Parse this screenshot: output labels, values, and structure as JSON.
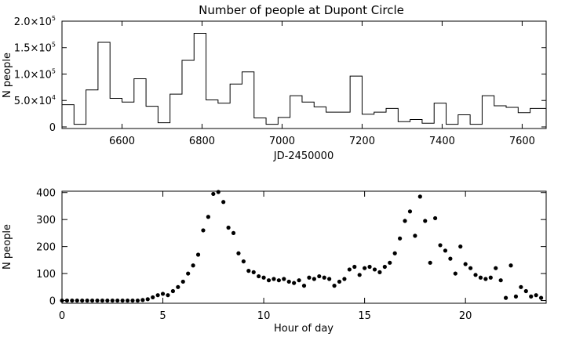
{
  "chart_data": [
    {
      "type": "histogram",
      "title": "Number of people at Dupont Circle",
      "xlabel": "JD-2450000",
      "ylabel": "N people",
      "xlim": [
        6450,
        7660
      ],
      "ylim": [
        -3000,
        200000
      ],
      "x_ticks": [
        6600,
        6800,
        7000,
        7200,
        7400,
        7600
      ],
      "y_ticks": [
        {
          "value": 0,
          "mantissa": "0",
          "power": ""
        },
        {
          "value": 50000,
          "mantissa": "5.0×10",
          "power": "4"
        },
        {
          "value": 100000,
          "mantissa": "1.0×10",
          "power": "5"
        },
        {
          "value": 150000,
          "mantissa": "1.5×10",
          "power": "5"
        },
        {
          "value": 200000,
          "mantissa": "2.0×10",
          "power": "5"
        }
      ],
      "bin_edges": [
        6450,
        6480,
        6510,
        6540,
        6570,
        6600,
        6630,
        6660,
        6690,
        6720,
        6750,
        6780,
        6810,
        6840,
        6870,
        6900,
        6930,
        6960,
        6990,
        7020,
        7050,
        7080,
        7110,
        7140,
        7170,
        7200,
        7230,
        7260,
        7290,
        7320,
        7350,
        7380,
        7410,
        7440,
        7470,
        7500,
        7530,
        7560,
        7590,
        7620,
        7660
      ],
      "values": [
        42000,
        5000,
        70000,
        160000,
        54000,
        47000,
        91000,
        39000,
        8000,
        62000,
        126000,
        177000,
        51000,
        45000,
        81000,
        104000,
        17000,
        5000,
        18000,
        59000,
        47000,
        38000,
        28000,
        28000,
        96000,
        24000,
        28000,
        35000,
        10000,
        14000,
        7000,
        45000,
        5000,
        23000,
        5000,
        59000,
        40000,
        37000,
        27000,
        35000
      ]
    },
    {
      "type": "scatter",
      "xlabel": "Hour of day",
      "ylabel": "N people",
      "xlim": [
        0,
        24
      ],
      "ylim": [
        -10,
        405
      ],
      "x_ticks": [
        0,
        5,
        10,
        15,
        20
      ],
      "y_ticks": [
        0,
        100,
        200,
        300,
        400
      ],
      "x": [
        0,
        0.25,
        0.5,
        0.75,
        1,
        1.25,
        1.5,
        1.75,
        2,
        2.25,
        2.5,
        2.75,
        3,
        3.25,
        3.5,
        3.75,
        4,
        4.25,
        4.5,
        4.75,
        5,
        5.25,
        5.5,
        5.75,
        6,
        6.25,
        6.5,
        6.75,
        7,
        7.25,
        7.5,
        7.75,
        8,
        8.25,
        8.5,
        8.75,
        9,
        9.25,
        9.5,
        9.75,
        10,
        10.25,
        10.5,
        10.75,
        11,
        11.25,
        11.5,
        11.75,
        12,
        12.25,
        12.5,
        12.75,
        13,
        13.25,
        13.5,
        13.75,
        14,
        14.25,
        14.5,
        14.75,
        15,
        15.25,
        15.5,
        15.75,
        16,
        16.25,
        16.5,
        16.75,
        17,
        17.25,
        17.5,
        17.75,
        18,
        18.25,
        18.5,
        18.75,
        19,
        19.25,
        19.5,
        19.75,
        20,
        20.25,
        20.5,
        20.75,
        21,
        21.25,
        21.5,
        21.75,
        22,
        22.25,
        22.5,
        22.75,
        23,
        23.25,
        23.5,
        23.75
      ],
      "y": [
        0,
        0,
        0,
        0,
        0,
        0,
        0,
        0,
        0,
        0,
        0,
        0,
        0,
        0,
        0,
        0,
        2,
        5,
        12,
        20,
        25,
        20,
        35,
        50,
        70,
        100,
        130,
        170,
        260,
        310,
        395,
        405,
        365,
        270,
        250,
        175,
        145,
        110,
        105,
        90,
        85,
        75,
        80,
        75,
        80,
        70,
        65,
        75,
        55,
        85,
        80,
        90,
        85,
        80,
        55,
        70,
        80,
        115,
        125,
        95,
        120,
        125,
        115,
        105,
        125,
        140,
        175,
        230,
        295,
        330,
        240,
        385,
        295,
        140,
        305,
        205,
        185,
        155,
        100,
        200,
        135,
        120,
        95,
        85,
        80,
        85,
        120,
        75,
        10,
        130,
        15,
        50,
        35,
        15,
        20,
        10
      ]
    }
  ]
}
